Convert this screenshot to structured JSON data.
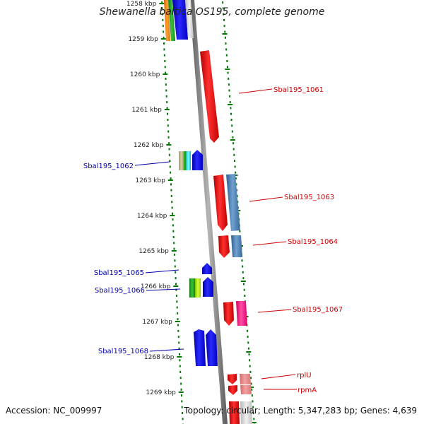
{
  "title": "Shewanella baltica OS195, complete genome",
  "accession": "Accession: NC_009997",
  "topology": "Topology: circular; Length: 5,347,283 bp; Genes: 4,639",
  "colors": {
    "forward_strand": "#0000ee",
    "reverse_strand": "#dd0000",
    "backbone": "#808080",
    "dots": "#007700"
  },
  "ruler": [
    {
      "label": "1258 kbp",
      "kbp": 1258
    },
    {
      "label": "1259 kbp",
      "kbp": 1259
    },
    {
      "label": "1260 kbp",
      "kbp": 1260
    },
    {
      "label": "1261 kbp",
      "kbp": 1261
    },
    {
      "label": "1262 kbp",
      "kbp": 1262
    },
    {
      "label": "1263 kbp",
      "kbp": 1263
    },
    {
      "label": "1264 kbp",
      "kbp": 1264
    },
    {
      "label": "1265 kbp",
      "kbp": 1265
    },
    {
      "label": "1266 kbp",
      "kbp": 1266
    },
    {
      "label": "1267 kbp",
      "kbp": 1267
    },
    {
      "label": "1268 kbp",
      "kbp": 1268
    },
    {
      "label": "1269 kbp",
      "kbp": 1269
    }
  ],
  "gene_labels": [
    {
      "name": "Sbal195_1061",
      "strand": "reverse"
    },
    {
      "name": "Sbal195_1062",
      "strand": "forward"
    },
    {
      "name": "Sbal195_1063",
      "strand": "reverse"
    },
    {
      "name": "Sbal195_1064",
      "strand": "reverse"
    },
    {
      "name": "Sbal195_1065",
      "strand": "forward"
    },
    {
      "name": "Sbal195_1066",
      "strand": "forward"
    },
    {
      "name": "Sbal195_1067",
      "strand": "reverse"
    },
    {
      "name": "Sbal195_1068",
      "strand": "forward"
    },
    {
      "name": "rplU",
      "strand": "reverse"
    },
    {
      "name": "rpmA",
      "strand": "reverse"
    }
  ]
}
